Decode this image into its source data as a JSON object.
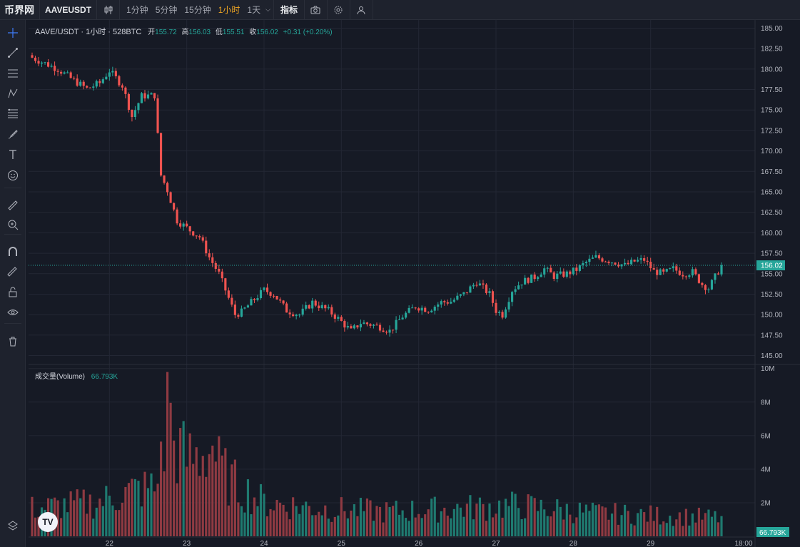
{
  "toolbar": {
    "logo": "币界网",
    "symbol": "AAVEUSDT",
    "intervals": [
      "1分钟",
      "5分钟",
      "15分钟",
      "1小时",
      "1天"
    ],
    "active_interval": "1小时",
    "indicators_label": "指标",
    "icons": [
      "chart-type-icon",
      "camera-icon",
      "settings-icon",
      "user-icon"
    ]
  },
  "left_tools": [
    "crosshair-icon",
    "trend-line-icon",
    "horizontal-lines-icon",
    "pattern-icon",
    "fib-icon",
    "brush-icon",
    "text-icon",
    "emoji-icon",
    "ruler-icon",
    "zoom-in-icon",
    "magnet-icon",
    "lock-draw-icon",
    "lock-icon",
    "eye-icon",
    "trash-icon",
    "layers-icon"
  ],
  "legend": {
    "title": "AAVE/USDT · 1小时 · 528BTC",
    "open_label": "开",
    "open": "155.72",
    "high_label": "高",
    "high": "156.03",
    "low_label": "低",
    "low": "155.51",
    "close_label": "收",
    "close": "156.02",
    "change": "+0.31 (+0.20%)"
  },
  "volume_legend": {
    "title": "成交量(Volume)",
    "value": "66.793K"
  },
  "colors": {
    "up": "#26a69a",
    "down": "#ef5350",
    "up_vol": "#1f7a70",
    "down_vol": "#8f3a42",
    "price_line": "#26a69a"
  },
  "chart_data": {
    "type": "candlestick",
    "symbol": "AAVE/USDT",
    "interval": "1小时",
    "price_axis": {
      "ticks": [
        "185.00",
        "182.50",
        "180.00",
        "177.50",
        "175.00",
        "172.50",
        "170.00",
        "167.50",
        "165.00",
        "162.50",
        "160.00",
        "157.50",
        "155.00",
        "152.50",
        "150.00",
        "147.50",
        "145.00"
      ],
      "range": [
        144.0,
        186.0
      ]
    },
    "volume_axis": {
      "ticks": [
        "10M",
        "8M",
        "6M",
        "4M",
        "2M"
      ],
      "range": [
        0,
        10200000
      ]
    },
    "x_ticks": [
      "22",
      "23",
      "24",
      "25",
      "26",
      "27",
      "28",
      "29",
      "18:00"
    ],
    "current_price": "156.02",
    "current_volume": "66.793K",
    "price_path": [
      [
        0,
        181.4
      ],
      [
        8,
        180.0
      ],
      [
        13,
        178.6
      ],
      [
        17,
        177.6
      ],
      [
        21,
        178.3
      ],
      [
        24,
        179.8
      ],
      [
        28,
        178.0
      ],
      [
        31,
        174.2
      ],
      [
        34,
        176.7
      ],
      [
        38,
        176.8
      ],
      [
        40,
        167.0
      ],
      [
        42,
        165.2
      ],
      [
        45,
        161.5
      ],
      [
        49,
        160.3
      ],
      [
        52,
        159.5
      ],
      [
        55,
        157.0
      ],
      [
        58,
        155.0
      ],
      [
        61,
        152.0
      ],
      [
        63,
        150.0
      ],
      [
        65,
        150.3
      ],
      [
        68,
        151.5
      ],
      [
        72,
        153.0
      ],
      [
        75,
        152.5
      ],
      [
        79,
        150.5
      ],
      [
        83,
        150.0
      ],
      [
        87,
        151.5
      ],
      [
        92,
        150.5
      ],
      [
        95,
        149.5
      ],
      [
        99,
        148.0
      ],
      [
        102,
        149.0
      ],
      [
        105,
        148.8
      ],
      [
        108,
        148.5
      ],
      [
        111,
        148.0
      ],
      [
        115,
        149.8
      ],
      [
        119,
        151.0
      ],
      [
        123,
        150.6
      ],
      [
        127,
        151.5
      ],
      [
        130,
        151.6
      ],
      [
        134,
        152.5
      ],
      [
        138,
        154.0
      ],
      [
        142,
        152.5
      ],
      [
        144,
        150.5
      ],
      [
        146,
        150.0
      ],
      [
        149,
        153.0
      ],
      [
        152,
        154.0
      ],
      [
        156,
        154.6
      ],
      [
        159,
        155.6
      ],
      [
        162,
        154.7
      ],
      [
        166,
        155.0
      ],
      [
        169,
        155.5
      ],
      [
        172,
        156.4
      ],
      [
        175,
        157.0
      ],
      [
        178,
        156.7
      ],
      [
        181,
        156.4
      ],
      [
        184,
        156.0
      ],
      [
        187,
        156.5
      ],
      [
        190,
        156.7
      ],
      [
        193,
        155.3
      ],
      [
        196,
        155.0
      ],
      [
        199,
        155.6
      ],
      [
        202,
        155.0
      ],
      [
        205,
        155.2
      ],
      [
        208,
        153.7
      ],
      [
        210,
        153.2
      ],
      [
        212,
        154.6
      ],
      [
        214,
        156.0
      ]
    ],
    "volume_profile": [
      [
        0,
        0.18
      ],
      [
        20,
        0.22
      ],
      [
        32,
        0.3
      ],
      [
        39,
        0.32
      ],
      [
        40,
        0.9
      ],
      [
        42,
        1.0
      ],
      [
        44,
        0.6
      ],
      [
        48,
        0.5
      ],
      [
        52,
        0.52
      ],
      [
        55,
        0.6
      ],
      [
        58,
        0.45
      ],
      [
        62,
        0.35
      ],
      [
        66,
        0.3
      ],
      [
        72,
        0.22
      ],
      [
        90,
        0.18
      ],
      [
        110,
        0.16
      ],
      [
        130,
        0.18
      ],
      [
        150,
        0.2
      ],
      [
        175,
        0.15
      ],
      [
        214,
        0.12
      ]
    ]
  }
}
